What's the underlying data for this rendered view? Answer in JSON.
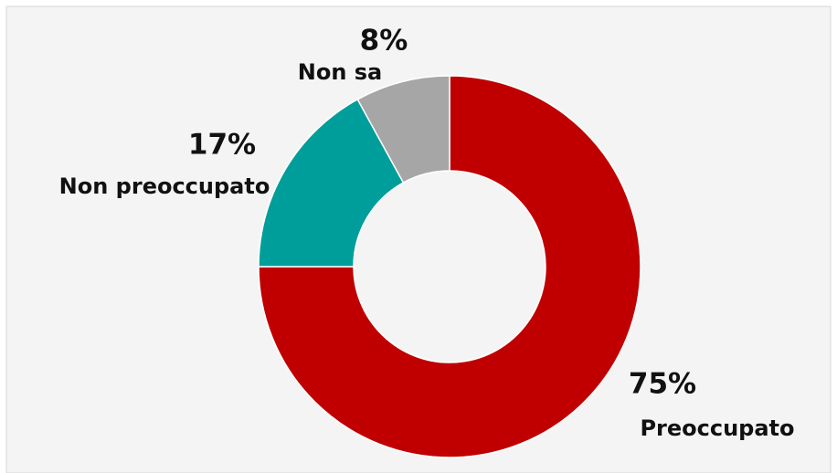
{
  "chart_data": {
    "type": "donut",
    "categories": [
      "Preoccupato",
      "Non preoccupato",
      "Non sa"
    ],
    "values": [
      75,
      17,
      8
    ],
    "value_labels": [
      "75%",
      "17%",
      "8%"
    ],
    "colors": [
      "#c00000",
      "#009e9a",
      "#a6a6a6"
    ]
  }
}
